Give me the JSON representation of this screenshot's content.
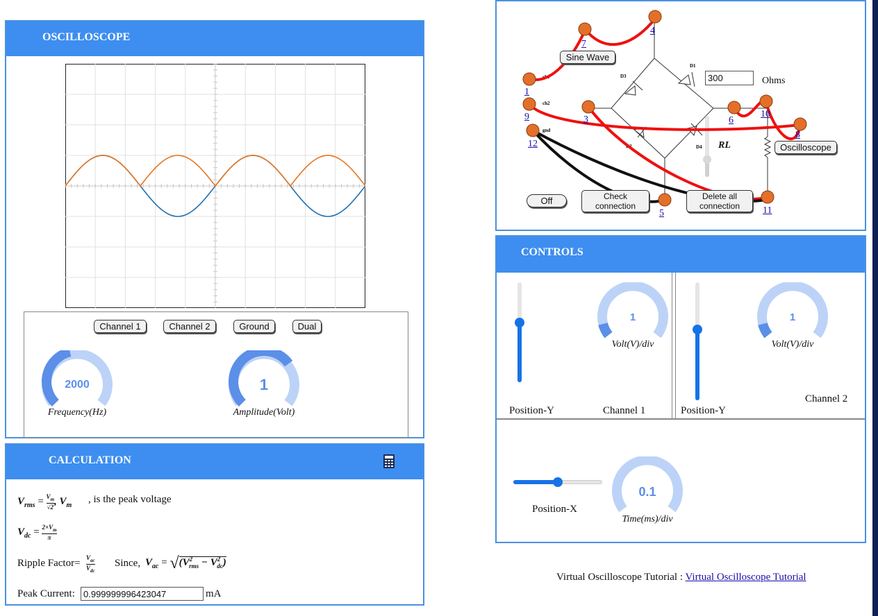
{
  "oscilloscope": {
    "title": "OSCILLOSCOPE",
    "buttons": [
      "Channel 1",
      "Channel 2",
      "Ground",
      "Dual"
    ],
    "frequency": {
      "value": "2000",
      "label": "Frequency(Hz)",
      "fraction": 0.45
    },
    "amplitude": {
      "value": "1",
      "label": "Amplitude(Volt)",
      "fraction": 0.7
    },
    "colors": {
      "ch1": "#1f6fb0",
      "ch2": "#e8761f"
    }
  },
  "calculation": {
    "title": "CALCULATION",
    "rms_suffix": ", is the peak voltage",
    "ripple_label": "Ripple Factor=",
    "since_label": "Since,",
    "peak_label": "Peak Current:",
    "peak_value": "0.999999996423047",
    "peak_unit": "mA",
    "icon": "calculator-icon"
  },
  "circuit": {
    "sine_button": "Sine Wave",
    "off_button": "Off",
    "check_button": "Check connection",
    "delete_button": "Delete all connection",
    "oscilloscope_button": "Oscilloscope",
    "resistance_value": "300",
    "ohms_label": "Ohms",
    "rl_label": "RL",
    "node_labels": [
      "1",
      "3",
      "4",
      "5",
      "6",
      "7",
      "8",
      "9",
      "10",
      "11",
      "12"
    ],
    "terminal_labels": [
      "ch1",
      "ch2",
      "gnd"
    ],
    "diode_labels": [
      "D1",
      "D3",
      "D4",
      "D2"
    ]
  },
  "controls": {
    "title": "CONTROLS",
    "ch1": {
      "gauge_value": "1",
      "gauge_label": "Volt(V)/div",
      "position_label": "Position-Y",
      "channel_label": "Channel 1",
      "slider_fraction": 0.6
    },
    "ch2": {
      "gauge_value": "1",
      "gauge_label": "Volt(V)/div",
      "position_label": "Position-Y",
      "channel_label": "Channel 2",
      "slider_fraction": 0.6
    },
    "time": {
      "gauge_value": "0.1",
      "gauge_label": "Time(ms)/div",
      "position_label": "Position-X",
      "slider_fraction": 0.5
    }
  },
  "footer": {
    "text": "Virtual Oscilloscope Tutorial :",
    "link": "Virtual Oscilloscope Tutorial"
  }
}
